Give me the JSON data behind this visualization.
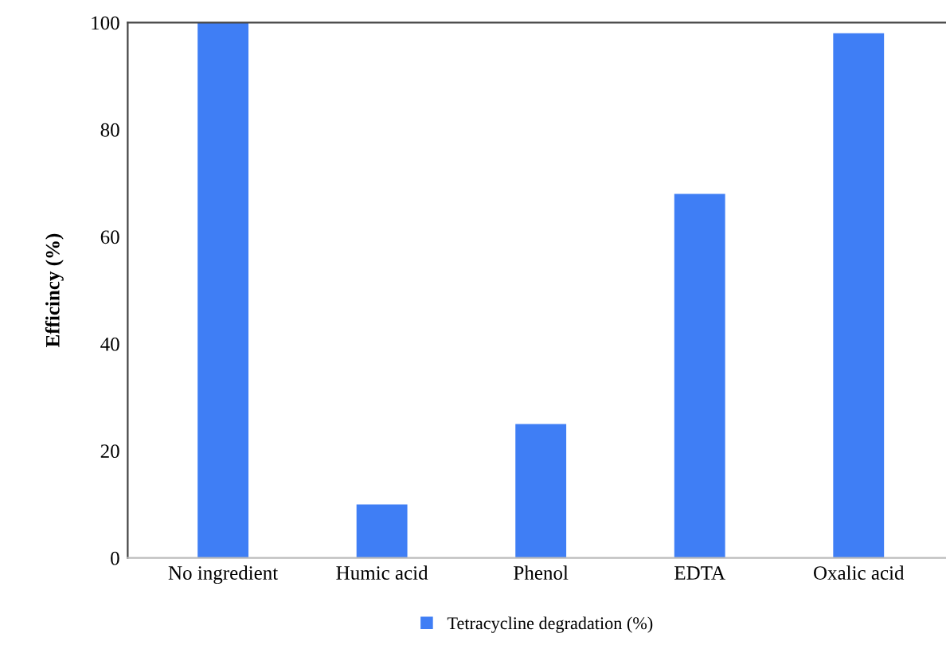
{
  "chart_data": {
    "type": "bar",
    "ylabel": "Efficincy (%)",
    "categories": [
      "No ingredient",
      "Humic acid",
      "Phenol",
      "EDTA",
      "Oxalic acid"
    ],
    "series": [
      {
        "name": "Tetracycline degradation (%)",
        "color": "#3f7ef5",
        "values": [
          100,
          10,
          25,
          68,
          98
        ]
      }
    ],
    "ylim": [
      0,
      100
    ],
    "yticks": [
      0,
      20,
      40,
      60,
      80,
      100
    ],
    "legend": "bottom"
  }
}
